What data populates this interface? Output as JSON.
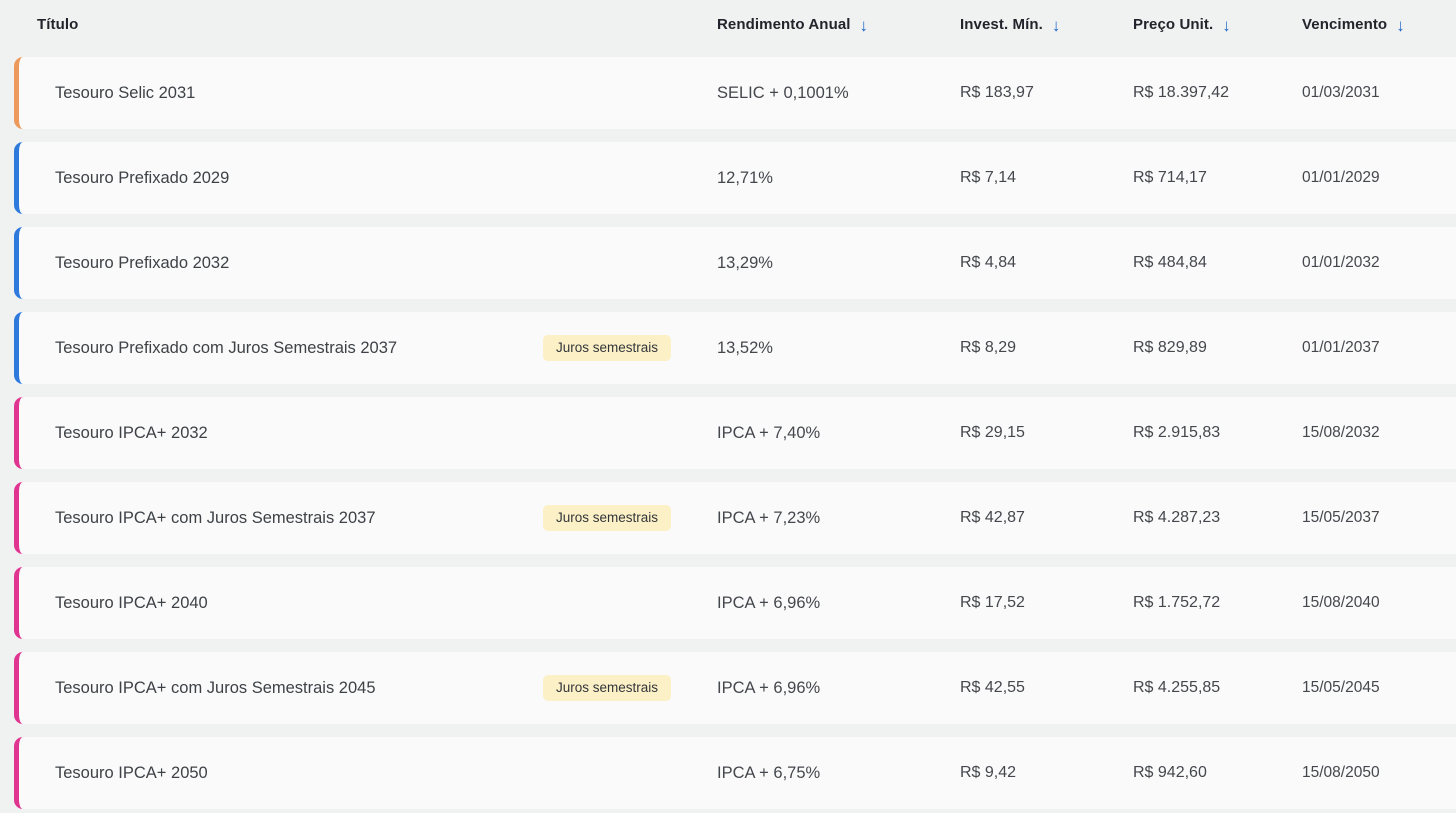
{
  "table": {
    "columns": {
      "titulo": {
        "label": "Título",
        "sortable": false
      },
      "rendimento": {
        "label": "Rendimento Anual",
        "sortable": true
      },
      "invest_min": {
        "label": "Invest. Mín.",
        "sortable": true
      },
      "preco_unit": {
        "label": "Preço Unit.",
        "sortable": true
      },
      "vencimento": {
        "label": "Vencimento",
        "sortable": true
      }
    },
    "sort_icon": "↓",
    "rows": [
      {
        "title": "Tesouro Selic 2031",
        "badge": "",
        "rendimento": "SELIC + 0,1001%",
        "invest_min": "R$ 183,97",
        "preco_unit": "R$ 18.397,42",
        "vencimento": "01/03/2031",
        "accent_color": "#EC995B"
      },
      {
        "title": "Tesouro Prefixado 2029",
        "badge": "",
        "rendimento": "12,71%",
        "invest_min": "R$ 7,14",
        "preco_unit": "R$ 714,17",
        "vencimento": "01/01/2029",
        "accent_color": "#2E7ADC"
      },
      {
        "title": "Tesouro Prefixado 2032",
        "badge": "",
        "rendimento": "13,29%",
        "invest_min": "R$ 4,84",
        "preco_unit": "R$ 484,84",
        "vencimento": "01/01/2032",
        "accent_color": "#2E7ADC"
      },
      {
        "title": "Tesouro Prefixado com Juros Semestrais 2037",
        "badge": "Juros semestrais",
        "rendimento": "13,52%",
        "invest_min": "R$ 8,29",
        "preco_unit": "R$ 829,89",
        "vencimento": "01/01/2037",
        "accent_color": "#2E7ADC"
      },
      {
        "title": "Tesouro IPCA+ 2032",
        "badge": "",
        "rendimento": "IPCA + 7,40%",
        "invest_min": "R$ 29,15",
        "preco_unit": "R$ 2.915,83",
        "vencimento": "15/08/2032",
        "accent_color": "#DF348F"
      },
      {
        "title": "Tesouro IPCA+ com Juros Semestrais 2037",
        "badge": "Juros semestrais",
        "rendimento": "IPCA + 7,23%",
        "invest_min": "R$ 42,87",
        "preco_unit": "R$ 4.287,23",
        "vencimento": "15/05/2037",
        "accent_color": "#DF348F"
      },
      {
        "title": "Tesouro IPCA+ 2040",
        "badge": "",
        "rendimento": "IPCA + 6,96%",
        "invest_min": "R$ 17,52",
        "preco_unit": "R$ 1.752,72",
        "vencimento": "15/08/2040",
        "accent_color": "#DF348F"
      },
      {
        "title": "Tesouro IPCA+ com Juros Semestrais 2045",
        "badge": "Juros semestrais",
        "rendimento": "IPCA + 6,96%",
        "invest_min": "R$ 42,55",
        "preco_unit": "R$ 4.255,85",
        "vencimento": "15/05/2045",
        "accent_color": "#DF348F"
      },
      {
        "title": "Tesouro IPCA+ 2050",
        "badge": "",
        "rendimento": "IPCA + 6,75%",
        "invest_min": "R$ 9,42",
        "preco_unit": "R$ 942,60",
        "vencimento": "15/08/2050",
        "accent_color": "#DF348F"
      }
    ]
  },
  "colors": {
    "page_background": "#f0f1f1",
    "card_background": "#fafafa",
    "accent_selic": "#EC995B",
    "accent_prefixado": "#2E7ADC",
    "accent_ipca": "#DF348F",
    "sort_arrow": "#2268C8",
    "badge_background": "#FCF0C6"
  }
}
